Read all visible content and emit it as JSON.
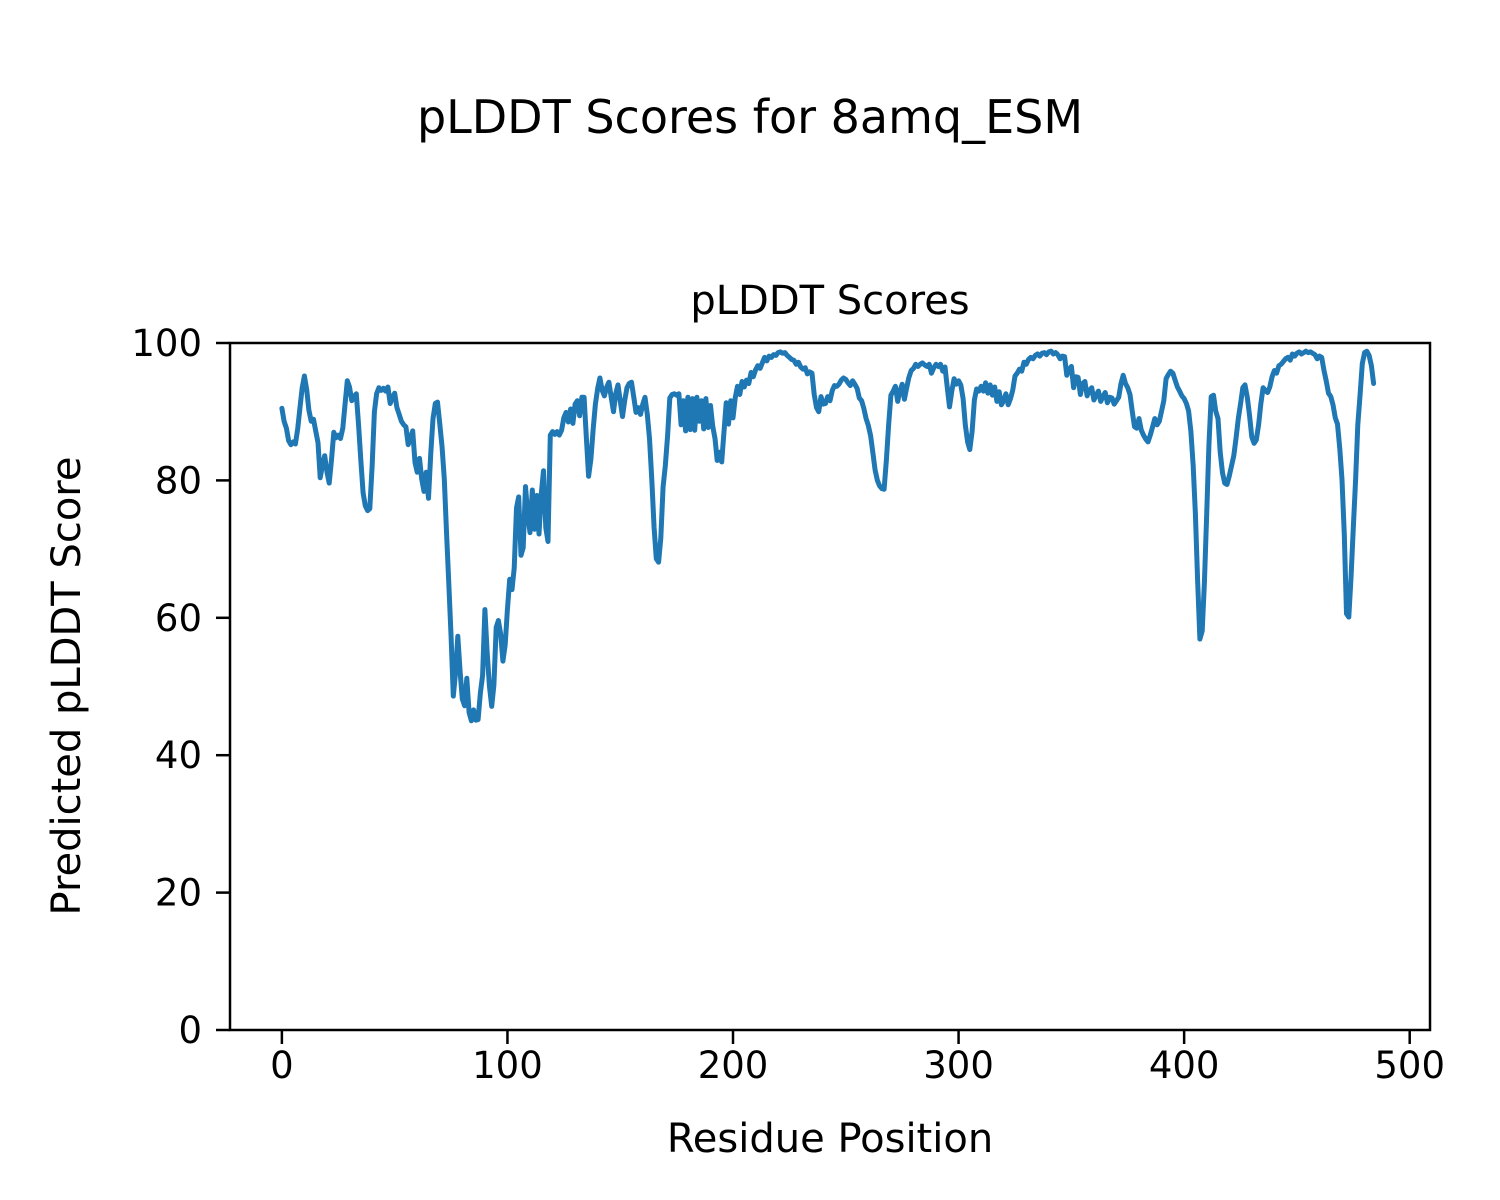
{
  "figure_title": "pLDDT Scores for 8amq_ESM",
  "chart_data": {
    "type": "line",
    "title": "pLDDT Scores",
    "xlabel": "Residue Position",
    "ylabel": "Predicted pLDDT Score",
    "series_name": "pLDDT",
    "xlim": [
      -23,
      509
    ],
    "ylim": [
      0,
      100
    ],
    "xticks": [
      0,
      100,
      200,
      300,
      400,
      500
    ],
    "yticks": [
      0,
      20,
      40,
      60,
      80,
      100
    ],
    "grid": false,
    "legend": false,
    "line_color": "#1f77b4",
    "line_width": 5,
    "axis_color": "#000000",
    "x_start": 0,
    "x_step": 1,
    "values": [
      90.5,
      88.6,
      87.6,
      85.8,
      85.2,
      85.6,
      85.3,
      87.5,
      90.5,
      93.5,
      95.2,
      93.2,
      90.2,
      88.6,
      88.9,
      87.2,
      85.5,
      80.4,
      82.2,
      83.6,
      81.2,
      79.6,
      83.0,
      87.0,
      86.2,
      86.6,
      86.1,
      87.6,
      91.0,
      94.5,
      93.6,
      91.6,
      92.2,
      92.6,
      88.0,
      83.0,
      78.2,
      76.3,
      75.6,
      75.9,
      82.0,
      90.0,
      92.6,
      93.5,
      93.1,
      93.4,
      93.0,
      93.6,
      91.2,
      92.1,
      92.7,
      90.6,
      89.6,
      88.6,
      88.1,
      87.8,
      85.2,
      86.2,
      87.2,
      82.6,
      81.2,
      83.2,
      80.2,
      78.4,
      81.2,
      77.4,
      84.0,
      89.0,
      91.2,
      91.4,
      88.2,
      85.0,
      80.2,
      72.5,
      65.0,
      57.2,
      48.6,
      52.1,
      57.3,
      52.2,
      48.2,
      47.2,
      51.2,
      46.2,
      45.0,
      46.6,
      45.1,
      45.2,
      49.1,
      51.6,
      61.2,
      55.1,
      50.1,
      47.1,
      50.2,
      58.6,
      59.6,
      57.6,
      53.7,
      56.1,
      61.2,
      65.6,
      64.1,
      67.2,
      76.0,
      77.6,
      69.1,
      70.2,
      79.1,
      75.1,
      72.4,
      78.6,
      72.9,
      77.8,
      72.2,
      78.1,
      81.4,
      73.1,
      71.1,
      86.6,
      87.1,
      86.7,
      87.1,
      86.6,
      87.3,
      89.1,
      89.9,
      88.5,
      90.4,
      88.3,
      91.1,
      91.6,
      89.4,
      92.1,
      92.1,
      86.1,
      80.6,
      83.1,
      87.5,
      91.1,
      93.4,
      94.9,
      93.1,
      92.3,
      93.6,
      94.3,
      92.1,
      90.0,
      92.6,
      93.9,
      91.6,
      89.3,
      91.6,
      93.5,
      94.1,
      94.3,
      92.1,
      89.9,
      90.6,
      89.6,
      91.1,
      92.1,
      89.6,
      86.1,
      80.1,
      73.1,
      68.6,
      68.1,
      71.6,
      79.1,
      82.1,
      86.5,
      92.0,
      92.5,
      92.6,
      92.4,
      92.6,
      88.1,
      91.6,
      87.2,
      92.1,
      87.4,
      91.9,
      87.3,
      92.1,
      88.6,
      91.6,
      87.5,
      91.9,
      87.7,
      90.9,
      87.9,
      86.1,
      82.9,
      84.1,
      82.7,
      87.1,
      91.3,
      88.2,
      91.6,
      89.1,
      92.1,
      93.7,
      92.5,
      94.4,
      93.6,
      94.6,
      94.1,
      95.7,
      95.1,
      96.1,
      96.7,
      96.3,
      97.1,
      97.9,
      97.4,
      98.1,
      97.9,
      98.3,
      98.2,
      98.6,
      98.7,
      98.5,
      98.6,
      98.2,
      97.9,
      97.6,
      97.5,
      96.9,
      97.2,
      96.5,
      96.2,
      96.4,
      95.5,
      95.8,
      95.6,
      92.5,
      90.6,
      90.0,
      92.2,
      91.1,
      91.2,
      92.2,
      91.6,
      93.1,
      93.8,
      93.7,
      94.0,
      94.6,
      94.9,
      94.7,
      94.2,
      93.8,
      94.5,
      94.0,
      93.4,
      92.0,
      91.6,
      90.5,
      89.0,
      88.0,
      86.5,
      84.0,
      81.5,
      80.0,
      79.2,
      78.8,
      78.7,
      83.0,
      88.0,
      92.4,
      93.0,
      93.7,
      91.5,
      93.0,
      94.0,
      91.8,
      93.5,
      95.0,
      96.0,
      96.3,
      96.9,
      96.6,
      96.9,
      97.1,
      96.8,
      96.6,
      96.9,
      95.6,
      96.4,
      96.9,
      96.6,
      96.9,
      95.9,
      96.5,
      93.5,
      90.7,
      93.0,
      94.8,
      94.0,
      94.5,
      93.9,
      91.9,
      88.1,
      85.6,
      84.5,
      87.1,
      91.7,
      93.3,
      93.0,
      93.7,
      93.0,
      94.2,
      92.7,
      93.9,
      92.4,
      93.6,
      91.5,
      92.9,
      91.0,
      91.6,
      92.6,
      91.0,
      91.9,
      93.1,
      95.2,
      95.6,
      96.2,
      95.9,
      97.2,
      96.9,
      97.6,
      97.9,
      97.7,
      98.2,
      98.4,
      98.1,
      98.5,
      98.6,
      98.3,
      98.7,
      98.8,
      98.4,
      98.6,
      98.3,
      97.7,
      98.1,
      98.0,
      95.3,
      96.1,
      96.6,
      93.5,
      95.1,
      95.0,
      92.5,
      94.1,
      94.4,
      92.3,
      93.1,
      93.5,
      91.7,
      92.4,
      93.0,
      91.5,
      92.2,
      92.8,
      91.3,
      92.1,
      92.0,
      91.1,
      91.6,
      92.1,
      94.1,
      95.3,
      94.1,
      93.5,
      92.5,
      90.0,
      87.8,
      87.6,
      89.0,
      87.3,
      86.6,
      86.0,
      85.6,
      86.6,
      87.8,
      89.0,
      88.1,
      88.6,
      90.1,
      91.6,
      94.8,
      95.4,
      95.9,
      95.6,
      94.6,
      93.6,
      93.0,
      92.3,
      91.9,
      91.2,
      90.1,
      87.1,
      82.1,
      75.1,
      65.1,
      56.9,
      58.1,
      65.1,
      75.1,
      85.1,
      92.2,
      92.4,
      90.1,
      89.0,
      84.1,
      81.1,
      79.6,
      79.4,
      80.6,
      82.1,
      83.6,
      86.1,
      89.0,
      91.1,
      93.5,
      93.9,
      92.1,
      89.5,
      86.3,
      85.4,
      85.9,
      88.1,
      91.1,
      93.5,
      93.1,
      92.8,
      93.6,
      95.1,
      96.0,
      95.6,
      96.7,
      96.9,
      97.3,
      97.7,
      97.9,
      97.5,
      98.4,
      98.1,
      98.5,
      98.7,
      98.4,
      98.6,
      98.8,
      98.6,
      98.7,
      98.5,
      98.3,
      97.7,
      98.1,
      97.9,
      96.0,
      94.5,
      92.7,
      92.2,
      91.0,
      89.1,
      88.2,
      84.6,
      80.1,
      72.1,
      60.6,
      60.1,
      66.1,
      73.1,
      80.1,
      88.1,
      92.5,
      97.0,
      98.6,
      98.8,
      98.2,
      96.7,
      94.1
    ]
  }
}
